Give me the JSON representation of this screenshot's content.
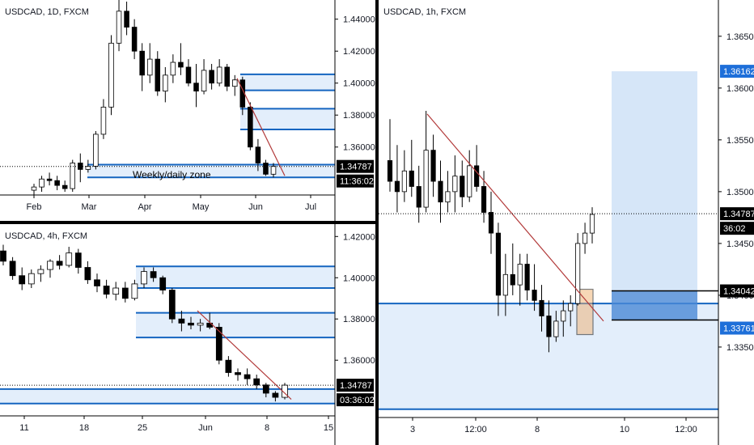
{
  "colors": {
    "up": "#ffffff",
    "down": "#000000",
    "zone_fill": "#e3eefb",
    "zone_line": "#1565c0",
    "trendline": "#b23a3a",
    "tag_blue": "#1e6fd9",
    "target_fill": "#cfe2f7",
    "stop_fill": "#4a88d6",
    "highlight": "#f0b070"
  },
  "panels": [
    {
      "id": "daily",
      "title": "USDCAD, 1D, FXCM",
      "annotation": "Weekly/daily zone",
      "price_tag": "1.34787",
      "timer_tag": "11:36:02"
    },
    {
      "id": "h4",
      "title": "USDCAD, 4h, FXCM",
      "price_tag": "1.34787",
      "timer_tag": "03:36:02"
    },
    {
      "id": "h1",
      "title": "USDCAD, 1h, FXCM",
      "price_tag": "1.34787",
      "timer_tag": "36:02",
      "target_tag": "1.36162",
      "entry_tag": "1.34042",
      "stop_tag": "1.33761"
    }
  ],
  "chart_data": [
    {
      "type": "candlestick",
      "title": "USDCAD, 1D, FXCM",
      "x_ticks": [
        "Feb",
        "Mar",
        "Apr",
        "May",
        "Jun",
        "Jul"
      ],
      "y_ticks": [
        "1.44000",
        "1.42000",
        "1.40000",
        "1.38000",
        "1.36000",
        "1.34787"
      ],
      "ylim": [
        1.33,
        1.452
      ],
      "last_price": 1.34787,
      "zones": [
        [
          1.341,
          1.349
        ],
        [
          1.3955,
          1.4055
        ],
        [
          1.371,
          1.384
        ]
      ],
      "trendline": [
        [
          "2020-05-28",
          1.403
        ],
        [
          "2020-06-17",
          1.342
        ]
      ],
      "series": [
        {
          "x": "Jan 20",
          "o": 1.333,
          "h": 1.337,
          "l": 1.33,
          "c": 1.335
        },
        {
          "x": "Jan 27",
          "o": 1.335,
          "h": 1.342,
          "l": 1.332,
          "c": 1.34
        },
        {
          "x": "Feb 03",
          "o": 1.34,
          "h": 1.344,
          "l": 1.336,
          "c": 1.339
        },
        {
          "x": "Feb 10",
          "o": 1.339,
          "h": 1.342,
          "l": 1.333,
          "c": 1.336
        },
        {
          "x": "Feb 17",
          "o": 1.336,
          "h": 1.339,
          "l": 1.332,
          "c": 1.334
        },
        {
          "x": "Feb 24",
          "o": 1.334,
          "h": 1.352,
          "l": 1.332,
          "c": 1.35
        },
        {
          "x": "Mar 02",
          "o": 1.35,
          "h": 1.356,
          "l": 1.338,
          "c": 1.346
        },
        {
          "x": "Mar 05",
          "o": 1.346,
          "h": 1.352,
          "l": 1.344,
          "c": 1.348
        },
        {
          "x": "Mar 09",
          "o": 1.348,
          "h": 1.37,
          "l": 1.346,
          "c": 1.368
        },
        {
          "x": "Mar 12",
          "o": 1.368,
          "h": 1.39,
          "l": 1.365,
          "c": 1.385
        },
        {
          "x": "Mar 16",
          "o": 1.385,
          "h": 1.43,
          "l": 1.38,
          "c": 1.425
        },
        {
          "x": "Mar 18",
          "o": 1.425,
          "h": 1.452,
          "l": 1.42,
          "c": 1.445
        },
        {
          "x": "Mar 20",
          "o": 1.445,
          "h": 1.451,
          "l": 1.43,
          "c": 1.435
        },
        {
          "x": "Mar 24",
          "o": 1.435,
          "h": 1.44,
          "l": 1.415,
          "c": 1.42
        },
        {
          "x": "Mar 27",
          "o": 1.42,
          "h": 1.425,
          "l": 1.395,
          "c": 1.405
        },
        {
          "x": "Apr 01",
          "o": 1.405,
          "h": 1.425,
          "l": 1.4,
          "c": 1.415
        },
        {
          "x": "Apr 06",
          "o": 1.415,
          "h": 1.42,
          "l": 1.392,
          "c": 1.395
        },
        {
          "x": "Apr 10",
          "o": 1.395,
          "h": 1.41,
          "l": 1.388,
          "c": 1.405
        },
        {
          "x": "Apr 15",
          "o": 1.405,
          "h": 1.418,
          "l": 1.4,
          "c": 1.413
        },
        {
          "x": "Apr 20",
          "o": 1.413,
          "h": 1.425,
          "l": 1.405,
          "c": 1.41
        },
        {
          "x": "Apr 24",
          "o": 1.41,
          "h": 1.415,
          "l": 1.398,
          "c": 1.4
        },
        {
          "x": "Apr 29",
          "o": 1.4,
          "h": 1.412,
          "l": 1.385,
          "c": 1.395
        },
        {
          "x": "May 04",
          "o": 1.395,
          "h": 1.415,
          "l": 1.393,
          "c": 1.408
        },
        {
          "x": "May 08",
          "o": 1.408,
          "h": 1.412,
          "l": 1.396,
          "c": 1.4
        },
        {
          "x": "May 13",
          "o": 1.4,
          "h": 1.415,
          "l": 1.398,
          "c": 1.41
        },
        {
          "x": "May 18",
          "o": 1.41,
          "h": 1.412,
          "l": 1.395,
          "c": 1.398
        },
        {
          "x": "May 22",
          "o": 1.398,
          "h": 1.405,
          "l": 1.392,
          "c": 1.402
        },
        {
          "x": "May 27",
          "o": 1.402,
          "h": 1.404,
          "l": 1.38,
          "c": 1.385
        },
        {
          "x": "Jun 01",
          "o": 1.385,
          "h": 1.388,
          "l": 1.358,
          "c": 1.36
        },
        {
          "x": "Jun 05",
          "o": 1.36,
          "h": 1.365,
          "l": 1.345,
          "c": 1.35
        },
        {
          "x": "Jun 09",
          "o": 1.35,
          "h": 1.352,
          "l": 1.342,
          "c": 1.343
        },
        {
          "x": "Jun 11",
          "o": 1.343,
          "h": 1.35,
          "l": 1.341,
          "c": 1.3479
        }
      ]
    },
    {
      "type": "candlestick",
      "title": "USDCAD, 4h, FXCM",
      "x_ticks": [
        "11",
        "18",
        "25",
        "Jun",
        "8",
        "15"
      ],
      "y_ticks": [
        "1.42000",
        "1.40000",
        "1.38000",
        "1.36000",
        "1.34787"
      ],
      "ylim": [
        1.333,
        1.426
      ],
      "last_price": 1.34787,
      "zones": [
        [
          1.339,
          1.346
        ],
        [
          1.395,
          1.4055
        ],
        [
          1.371,
          1.383
        ]
      ],
      "trendline": [
        [
          "2020-05-27",
          1.384
        ],
        [
          "2020-06-09",
          1.341
        ]
      ],
      "series": [
        {
          "x": "May 06",
          "o": 1.413,
          "h": 1.416,
          "l": 1.406,
          "c": 1.408
        },
        {
          "x": "May 07",
          "o": 1.408,
          "h": 1.41,
          "l": 1.399,
          "c": 1.401
        },
        {
          "x": "May 08",
          "o": 1.401,
          "h": 1.405,
          "l": 1.394,
          "c": 1.397
        },
        {
          "x": "May 09",
          "o": 1.397,
          "h": 1.404,
          "l": 1.395,
          "c": 1.402
        },
        {
          "x": "May 11",
          "o": 1.402,
          "h": 1.406,
          "l": 1.398,
          "c": 1.404
        },
        {
          "x": "May 12",
          "o": 1.404,
          "h": 1.409,
          "l": 1.4,
          "c": 1.408
        },
        {
          "x": "May 13",
          "o": 1.408,
          "h": 1.411,
          "l": 1.404,
          "c": 1.406
        },
        {
          "x": "May 14",
          "o": 1.406,
          "h": 1.415,
          "l": 1.405,
          "c": 1.412
        },
        {
          "x": "May 15",
          "o": 1.412,
          "h": 1.414,
          "l": 1.402,
          "c": 1.405
        },
        {
          "x": "May 17",
          "o": 1.405,
          "h": 1.408,
          "l": 1.397,
          "c": 1.399
        },
        {
          "x": "May 18",
          "o": 1.399,
          "h": 1.402,
          "l": 1.393,
          "c": 1.396
        },
        {
          "x": "May 19",
          "o": 1.396,
          "h": 1.399,
          "l": 1.39,
          "c": 1.392
        },
        {
          "x": "May 20",
          "o": 1.392,
          "h": 1.398,
          "l": 1.389,
          "c": 1.395
        },
        {
          "x": "May 21",
          "o": 1.395,
          "h": 1.398,
          "l": 1.388,
          "c": 1.39
        },
        {
          "x": "May 22",
          "o": 1.39,
          "h": 1.399,
          "l": 1.389,
          "c": 1.397
        },
        {
          "x": "May 24",
          "o": 1.397,
          "h": 1.405,
          "l": 1.395,
          "c": 1.403
        },
        {
          "x": "May 25",
          "o": 1.403,
          "h": 1.405,
          "l": 1.398,
          "c": 1.4
        },
        {
          "x": "May 26",
          "o": 1.4,
          "h": 1.401,
          "l": 1.392,
          "c": 1.394
        },
        {
          "x": "May 27",
          "o": 1.394,
          "h": 1.395,
          "l": 1.378,
          "c": 1.38
        },
        {
          "x": "May 28",
          "o": 1.38,
          "h": 1.384,
          "l": 1.374,
          "c": 1.378
        },
        {
          "x": "May 29",
          "o": 1.378,
          "h": 1.381,
          "l": 1.375,
          "c": 1.377
        },
        {
          "x": "May 31",
          "o": 1.377,
          "h": 1.38,
          "l": 1.374,
          "c": 1.378
        },
        {
          "x": "Jun 01",
          "o": 1.378,
          "h": 1.383,
          "l": 1.375,
          "c": 1.376
        },
        {
          "x": "Jun 02",
          "o": 1.376,
          "h": 1.378,
          "l": 1.358,
          "c": 1.36
        },
        {
          "x": "Jun 03",
          "o": 1.36,
          "h": 1.362,
          "l": 1.352,
          "c": 1.354
        },
        {
          "x": "Jun 04",
          "o": 1.354,
          "h": 1.356,
          "l": 1.35,
          "c": 1.353
        },
        {
          "x": "Jun 05",
          "o": 1.353,
          "h": 1.356,
          "l": 1.348,
          "c": 1.351
        },
        {
          "x": "Jun 07",
          "o": 1.351,
          "h": 1.353,
          "l": 1.346,
          "c": 1.348
        },
        {
          "x": "Jun 08",
          "o": 1.348,
          "h": 1.349,
          "l": 1.342,
          "c": 1.344
        },
        {
          "x": "Jun 09",
          "o": 1.344,
          "h": 1.345,
          "l": 1.34,
          "c": 1.342
        },
        {
          "x": "Jun 10",
          "o": 1.342,
          "h": 1.349,
          "l": 1.341,
          "c": 1.3479
        }
      ]
    },
    {
      "type": "candlestick",
      "title": "USDCAD, 1h, FXCM",
      "x_ticks": [
        "3",
        "12:00",
        "8",
        "10",
        "12:00"
      ],
      "y_ticks": [
        "1.36500",
        "1.36000",
        "1.35500",
        "1.35000",
        "1.34500",
        "1.34000",
        "1.33500"
      ],
      "ylim": [
        1.3282,
        1.3685
      ],
      "last_price": 1.34787,
      "zones": [
        [
          1.329,
          1.3392
        ]
      ],
      "trendline": [
        [
          "2020-06-03 06:00",
          1.3575
        ],
        [
          "2020-06-09 04:00",
          1.3375
        ]
      ],
      "position": {
        "target": 1.36162,
        "entry": 1.34042,
        "stop": 1.33761
      },
      "series": [
        {
          "x": "Jun 02 12:00",
          "o": 1.353,
          "h": 1.357,
          "l": 1.35,
          "c": 1.351
        },
        {
          "x": "Jun 02 16:00",
          "o": 1.351,
          "h": 1.3545,
          "l": 1.348,
          "c": 1.35
        },
        {
          "x": "Jun 02 20:00",
          "o": 1.35,
          "h": 1.354,
          "l": 1.349,
          "c": 1.352
        },
        {
          "x": "Jun 03 00:00",
          "o": 1.352,
          "h": 1.355,
          "l": 1.3495,
          "c": 1.3505
        },
        {
          "x": "Jun 03 03:00",
          "o": 1.3505,
          "h": 1.3525,
          "l": 1.347,
          "c": 1.3485
        },
        {
          "x": "Jun 03 06:00",
          "o": 1.3485,
          "h": 1.3578,
          "l": 1.348,
          "c": 1.354
        },
        {
          "x": "Jun 03 09:00",
          "o": 1.354,
          "h": 1.3555,
          "l": 1.3495,
          "c": 1.351
        },
        {
          "x": "Jun 03 12:00",
          "o": 1.351,
          "h": 1.353,
          "l": 1.347,
          "c": 1.349
        },
        {
          "x": "Jun 03 15:00",
          "o": 1.349,
          "h": 1.352,
          "l": 1.348,
          "c": 1.35
        },
        {
          "x": "Jun 03 18:00",
          "o": 1.35,
          "h": 1.3535,
          "l": 1.348,
          "c": 1.3515
        },
        {
          "x": "Jun 03 21:00",
          "o": 1.3515,
          "h": 1.353,
          "l": 1.3485,
          "c": 1.3495
        },
        {
          "x": "Jun 04 00:00",
          "o": 1.3495,
          "h": 1.354,
          "l": 1.349,
          "c": 1.3525
        },
        {
          "x": "Jun 04 03:00",
          "o": 1.3525,
          "h": 1.3545,
          "l": 1.35,
          "c": 1.3505
        },
        {
          "x": "Jun 04 06:00",
          "o": 1.3505,
          "h": 1.352,
          "l": 1.347,
          "c": 1.348
        },
        {
          "x": "Jun 04 09:00",
          "o": 1.348,
          "h": 1.35,
          "l": 1.344,
          "c": 1.346
        },
        {
          "x": "Jun 04 12:00",
          "o": 1.346,
          "h": 1.347,
          "l": 1.338,
          "c": 1.34
        },
        {
          "x": "Jun 04 15:00",
          "o": 1.34,
          "h": 1.344,
          "l": 1.338,
          "c": 1.342
        },
        {
          "x": "Jun 04 18:00",
          "o": 1.342,
          "h": 1.345,
          "l": 1.34,
          "c": 1.341
        },
        {
          "x": "Jun 04 21:00",
          "o": 1.341,
          "h": 1.344,
          "l": 1.339,
          "c": 1.343
        },
        {
          "x": "Jun 05 00:00",
          "o": 1.343,
          "h": 1.344,
          "l": 1.3395,
          "c": 1.3405
        },
        {
          "x": "Jun 05 03:00",
          "o": 1.3405,
          "h": 1.343,
          "l": 1.3385,
          "c": 1.3395
        },
        {
          "x": "Jun 05 06:00",
          "o": 1.3395,
          "h": 1.341,
          "l": 1.3365,
          "c": 1.338
        },
        {
          "x": "Jun 05 09:00",
          "o": 1.338,
          "h": 1.3395,
          "l": 1.3345,
          "c": 1.336
        },
        {
          "x": "Jun 05 12:00",
          "o": 1.336,
          "h": 1.3385,
          "l": 1.3355,
          "c": 1.3375
        },
        {
          "x": "Jun 05 15:00",
          "o": 1.3375,
          "h": 1.3395,
          "l": 1.336,
          "c": 1.3385
        },
        {
          "x": "Jun 05 18:00",
          "o": 1.3385,
          "h": 1.34,
          "l": 1.337,
          "c": 1.3392
        },
        {
          "x": "Jun 05 20:00",
          "o": 1.3392,
          "h": 1.346,
          "l": 1.339,
          "c": 1.345
        },
        {
          "x": "Jun 05 21:00",
          "o": 1.345,
          "h": 1.347,
          "l": 1.344,
          "c": 1.346
        },
        {
          "x": "Jun 05 22:00",
          "o": 1.346,
          "h": 1.3485,
          "l": 1.345,
          "c": 1.3478
        }
      ]
    }
  ]
}
